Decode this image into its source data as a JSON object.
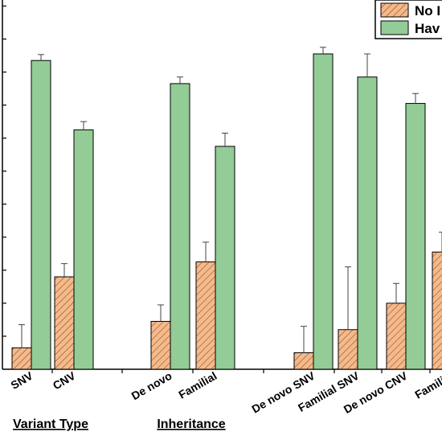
{
  "chart_data": {
    "type": "bar",
    "categories": [
      "SNV",
      "CNV",
      "De novo",
      "Familial",
      "De novo SNV",
      "Familial SNV",
      "De novo CNV",
      "Familial"
    ],
    "groups": [
      {
        "label": "Variant Type",
        "categories": [
          "SNV",
          "CNV"
        ]
      },
      {
        "label": "Inheritance",
        "categories": [
          "De novo",
          "Familial"
        ]
      },
      {
        "label": "",
        "categories": [
          "De novo SNV",
          "Familial SNV",
          "De novo CNV",
          "Familial"
        ]
      }
    ],
    "series": [
      {
        "name": "No I",
        "color": "#f5b98a",
        "hatch": true,
        "values": [
          6.5,
          28,
          14.5,
          32.5,
          5,
          12,
          20,
          35.5
        ],
        "errors": [
          7,
          4,
          5,
          6,
          8,
          19,
          6,
          6
        ]
      },
      {
        "name": "Hav",
        "color": "#93cc96",
        "hatch": false,
        "values": [
          93.5,
          72.5,
          86.5,
          67.5,
          95.5,
          88.5,
          80.5,
          null
        ],
        "errors": [
          1.8,
          2.5,
          2,
          4,
          2,
          7,
          3,
          0
        ]
      }
    ],
    "ylim": [
      0,
      105
    ],
    "grid": false,
    "legend": "top-right"
  }
}
